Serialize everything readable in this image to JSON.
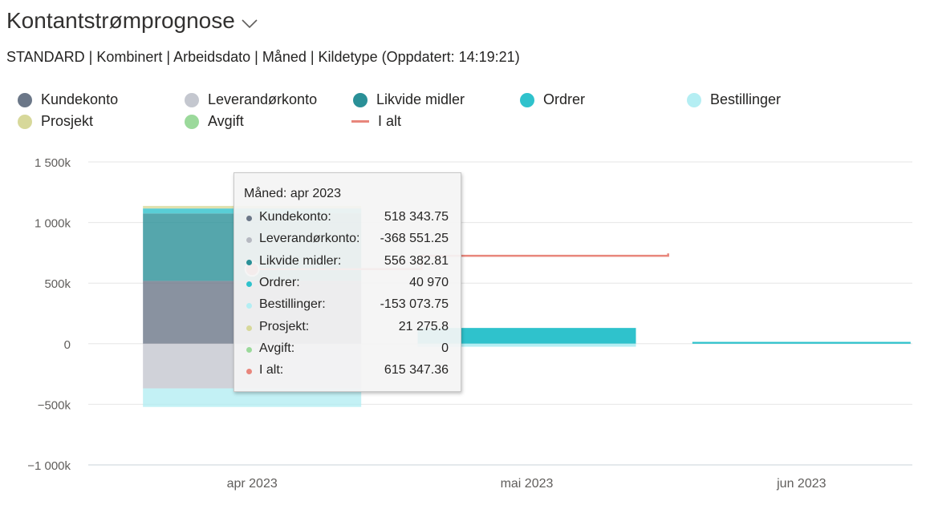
{
  "header": {
    "title": "Kontantstrømprognose",
    "chevron_icon": "chevron-down-icon",
    "subtitle": "STANDARD | Kombinert | Arbeidsdato | Måned | Kildetype (Oppdatert: 14:19:21)"
  },
  "colors": {
    "Kundekonto": "#6b7788",
    "Leverandørkonto": "#c4c7cf",
    "Likvide midler": "#2a9097",
    "Ordrer": "#2fc2cc",
    "Bestillinger": "#b4eef3",
    "Prosjekt": "#d7d89a",
    "Avgift": "#9bd99b",
    "I alt": "#e8867c"
  },
  "tooltip": {
    "header": "Måned: apr 2023",
    "rows": [
      {
        "label": "Kundekonto:",
        "value": "518 343.75"
      },
      {
        "label": "Leverandørkonto:",
        "value": "-368 551.25"
      },
      {
        "label": "Likvide midler:",
        "value": "556 382.81"
      },
      {
        "label": "Ordrer:",
        "value": "40 970"
      },
      {
        "label": "Bestillinger:",
        "value": "-153 073.75"
      },
      {
        "label": "Prosjekt:",
        "value": "21 275.8"
      },
      {
        "label": "Avgift:",
        "value": "0"
      },
      {
        "label": "I alt:",
        "value": "615 347.36"
      }
    ]
  },
  "chart_data": {
    "type": "bar",
    "stacked": true,
    "categories": [
      "apr 2023",
      "mai 2023",
      "jun 2023"
    ],
    "y_ticks": [
      "1 500k",
      "1 000k",
      "500k",
      "0",
      "−500k",
      "−1 000k"
    ],
    "y_tick_values": [
      1500000,
      1000000,
      500000,
      0,
      -500000,
      -1000000
    ],
    "ylim": [
      -1000000,
      1500000
    ],
    "grid": true,
    "legend_position": "top",
    "series": [
      {
        "name": "Kundekonto",
        "values": [
          518343.75,
          0,
          0
        ]
      },
      {
        "name": "Leverandørkonto",
        "values": [
          -368551.25,
          0,
          0
        ]
      },
      {
        "name": "Likvide midler",
        "values": [
          556382.81,
          0,
          0
        ]
      },
      {
        "name": "Ordrer",
        "values": [
          40970,
          130000,
          15000
        ]
      },
      {
        "name": "Bestillinger",
        "values": [
          -153073.75,
          -25000,
          0
        ]
      },
      {
        "name": "Prosjekt",
        "values": [
          21275.8,
          0,
          0
        ]
      },
      {
        "name": "Avgift",
        "values": [
          0,
          0,
          0
        ]
      }
    ],
    "line_series": {
      "name": "I alt",
      "type": "step",
      "values": [
        615347.36,
        725000,
        725000
      ]
    }
  }
}
